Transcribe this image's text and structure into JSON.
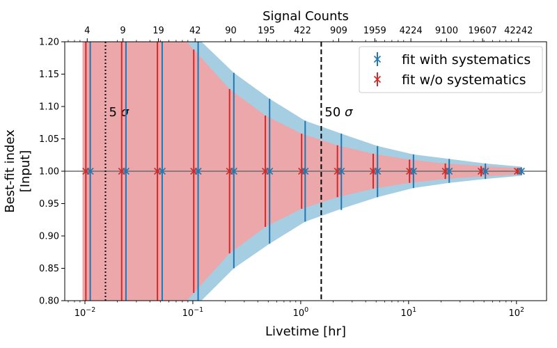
{
  "chart_data": {
    "type": "scatter",
    "xlabel": "Livetime [hr]",
    "ylabel": "Best-fit index",
    "ylabel_sub": "[Input]",
    "top_xlabel": "Signal Counts",
    "x_scale": "log",
    "xlim": [
      0.0065,
      190
    ],
    "ylim": [
      0.8,
      1.2
    ],
    "y_ticks": [
      "0.80",
      "0.85",
      "0.90",
      "0.95",
      "1.00",
      "1.05",
      "1.10",
      "1.15",
      "1.20"
    ],
    "x_ticks": [
      {
        "value": 0.01,
        "base": "10",
        "exp": "−2"
      },
      {
        "value": 0.1,
        "base": "10",
        "exp": "−1"
      },
      {
        "value": 1,
        "base": "10",
        "exp": "0"
      },
      {
        "value": 10,
        "base": "10",
        "exp": "1"
      },
      {
        "value": 100,
        "base": "10",
        "exp": "2"
      }
    ],
    "top_ticks": [
      {
        "x": 0.0105,
        "label": "4"
      },
      {
        "x": 0.0225,
        "label": "9"
      },
      {
        "x": 0.048,
        "label": "19"
      },
      {
        "x": 0.105,
        "label": "42"
      },
      {
        "x": 0.225,
        "label": "90"
      },
      {
        "x": 0.48,
        "label": "195"
      },
      {
        "x": 1.04,
        "label": "422"
      },
      {
        "x": 2.25,
        "label": "909"
      },
      {
        "x": 4.86,
        "label": "1959"
      },
      {
        "x": 10.5,
        "label": "4224"
      },
      {
        "x": 22.5,
        "label": "9100"
      },
      {
        "x": 48.5,
        "label": "19607"
      },
      {
        "x": 104.5,
        "label": "42242"
      }
    ],
    "reference_line_y": 1.0,
    "vlines": [
      {
        "x": 0.0155,
        "style": "dotted",
        "label": "5 σ"
      },
      {
        "x": 1.55,
        "style": "dashed",
        "label": "50 σ"
      }
    ],
    "series": [
      {
        "name": "fit with systematics",
        "color": "#1f77b4",
        "band_color": "#a6cee3",
        "points": [
          {
            "x": 0.0112,
            "y": 1.0,
            "lo": 0.8,
            "hi": 1.2
          },
          {
            "x": 0.024,
            "y": 1.0,
            "lo": 0.8,
            "hi": 1.2
          },
          {
            "x": 0.052,
            "y": 1.0,
            "lo": 0.8,
            "hi": 1.2
          },
          {
            "x": 0.112,
            "y": 1.0,
            "lo": 0.8,
            "hi": 1.2
          },
          {
            "x": 0.24,
            "y": 1.0,
            "lo": 0.85,
            "hi": 1.152
          },
          {
            "x": 0.515,
            "y": 1.0,
            "lo": 0.888,
            "hi": 1.112
          },
          {
            "x": 1.1,
            "y": 1.0,
            "lo": 0.922,
            "hi": 1.078
          },
          {
            "x": 2.38,
            "y": 1.0,
            "lo": 0.94,
            "hi": 1.058
          },
          {
            "x": 5.15,
            "y": 1.0,
            "lo": 0.96,
            "hi": 1.039
          },
          {
            "x": 11.1,
            "y": 1.0,
            "lo": 0.974,
            "hi": 1.026
          },
          {
            "x": 23.8,
            "y": 1.0,
            "lo": 0.982,
            "hi": 1.019
          },
          {
            "x": 51.5,
            "y": 1.0,
            "lo": 0.988,
            "hi": 1.012
          },
          {
            "x": 111,
            "y": 1.0,
            "lo": 0.994,
            "hi": 1.006
          }
        ]
      },
      {
        "name": "fit w/o systematics",
        "color": "#d62728",
        "band_color": "#eba7a9",
        "points": [
          {
            "x": 0.0102,
            "y": 1.0,
            "lo": 0.8,
            "hi": 1.2
          },
          {
            "x": 0.0219,
            "y": 1.0,
            "lo": 0.8,
            "hi": 1.2
          },
          {
            "x": 0.047,
            "y": 1.0,
            "lo": 0.8,
            "hi": 1.2
          },
          {
            "x": 0.102,
            "y": 1.0,
            "lo": 0.812,
            "hi": 1.188
          },
          {
            "x": 0.219,
            "y": 1.0,
            "lo": 0.873,
            "hi": 1.127
          },
          {
            "x": 0.47,
            "y": 1.0,
            "lo": 0.914,
            "hi": 1.086
          },
          {
            "x": 1.02,
            "y": 1.0,
            "lo": 0.942,
            "hi": 1.058
          },
          {
            "x": 2.19,
            "y": 1.0,
            "lo": 0.96,
            "hi": 1.04
          },
          {
            "x": 4.7,
            "y": 1.0,
            "lo": 0.973,
            "hi": 1.027
          },
          {
            "x": 10.2,
            "y": 1.0,
            "lo": 0.982,
            "hi": 1.018
          },
          {
            "x": 21.9,
            "y": 1.0,
            "lo": 0.988,
            "hi": 1.012
          },
          {
            "x": 47,
            "y": 1.0,
            "lo": 0.992,
            "hi": 1.008
          },
          {
            "x": 102,
            "y": 1.0,
            "lo": 0.995,
            "hi": 1.005
          }
        ]
      }
    ],
    "band_with_systematics": [
      {
        "x": 0.0095,
        "lo": 0.8,
        "hi": 1.2
      },
      {
        "x": 0.088,
        "lo": 0.8,
        "hi": 1.2
      },
      {
        "x": 0.112,
        "lo": 0.795,
        "hi": 1.205
      },
      {
        "x": 0.24,
        "lo": 0.85,
        "hi": 1.152
      },
      {
        "x": 0.515,
        "lo": 0.888,
        "hi": 1.112
      },
      {
        "x": 1.1,
        "lo": 0.922,
        "hi": 1.078
      },
      {
        "x": 2.38,
        "lo": 0.942,
        "hi": 1.058
      },
      {
        "x": 5.15,
        "lo": 0.96,
        "hi": 1.039
      },
      {
        "x": 11.1,
        "lo": 0.974,
        "hi": 1.026
      },
      {
        "x": 23.8,
        "lo": 0.982,
        "hi": 1.019
      },
      {
        "x": 51.5,
        "lo": 0.988,
        "hi": 1.012
      },
      {
        "x": 111,
        "lo": 0.993,
        "hi": 1.007
      }
    ],
    "band_without_systematics": [
      {
        "x": 0.0095,
        "lo": 0.8,
        "hi": 1.2
      },
      {
        "x": 0.088,
        "lo": 0.8,
        "hi": 1.2
      },
      {
        "x": 0.102,
        "lo": 0.812,
        "hi": 1.188
      },
      {
        "x": 0.219,
        "lo": 0.873,
        "hi": 1.127
      },
      {
        "x": 0.47,
        "lo": 0.914,
        "hi": 1.086
      },
      {
        "x": 1.02,
        "lo": 0.942,
        "hi": 1.058
      },
      {
        "x": 2.19,
        "lo": 0.96,
        "hi": 1.04
      },
      {
        "x": 4.7,
        "lo": 0.973,
        "hi": 1.027
      },
      {
        "x": 10.2,
        "lo": 0.982,
        "hi": 1.018
      },
      {
        "x": 21.9,
        "lo": 0.988,
        "hi": 1.012
      },
      {
        "x": 47,
        "lo": 0.992,
        "hi": 1.008
      },
      {
        "x": 102,
        "lo": 0.995,
        "hi": 1.005
      },
      {
        "x": 111,
        "lo": 0.996,
        "hi": 1.004
      }
    ],
    "legend_position": "top-right"
  }
}
